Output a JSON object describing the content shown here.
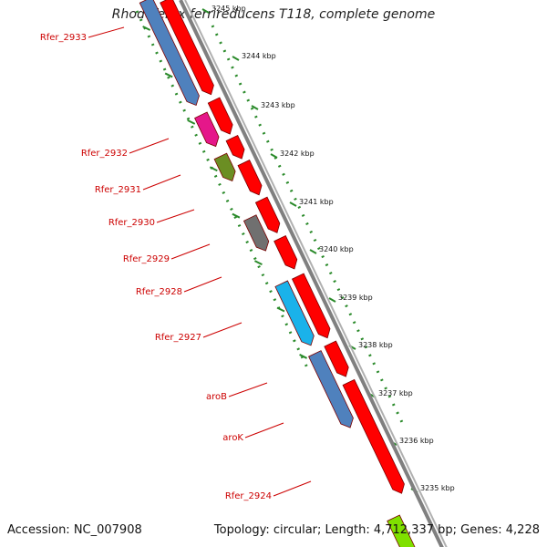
{
  "title": "Rhodoferax ferrireducens T118, complete genome",
  "footer": {
    "accession": "Accession: NC_007908",
    "summary": "Topology: circular; Length: 4,712,337 bp; Genes: 4,228"
  },
  "colors": {
    "cds_forward": "#ff0000",
    "backbone": "#808080",
    "ruler": "#2a8a2a",
    "label": "#cc0000"
  },
  "scale_labels": [
    "3245 kbp",
    "3244 kbp",
    "3243 kbp",
    "3242 kbp",
    "3241 kbp",
    "3240 kbp",
    "3239 kbp",
    "3238 kbp",
    "3237 kbp",
    "3236 kbp",
    "3235 kbp"
  ],
  "genes": [
    {
      "label": "Rfer_2933",
      "color": "#4f81bd"
    },
    {
      "label": "Rfer_2932",
      "color": "#e5178a"
    },
    {
      "label": "Rfer_2931",
      "color": "#6b8e23"
    },
    {
      "label": "Rfer_2930",
      "color": ""
    },
    {
      "label": "Rfer_2929",
      "color": "#707070"
    },
    {
      "label": "Rfer_2928",
      "color": ""
    },
    {
      "label": "Rfer_2927",
      "color": "#1ab2ea"
    },
    {
      "label": "aroB",
      "color": "#4f81bd"
    },
    {
      "label": "aroK",
      "color": "#4f81bd"
    },
    {
      "label": "Rfer_2924",
      "color": "#7fe000"
    }
  ]
}
